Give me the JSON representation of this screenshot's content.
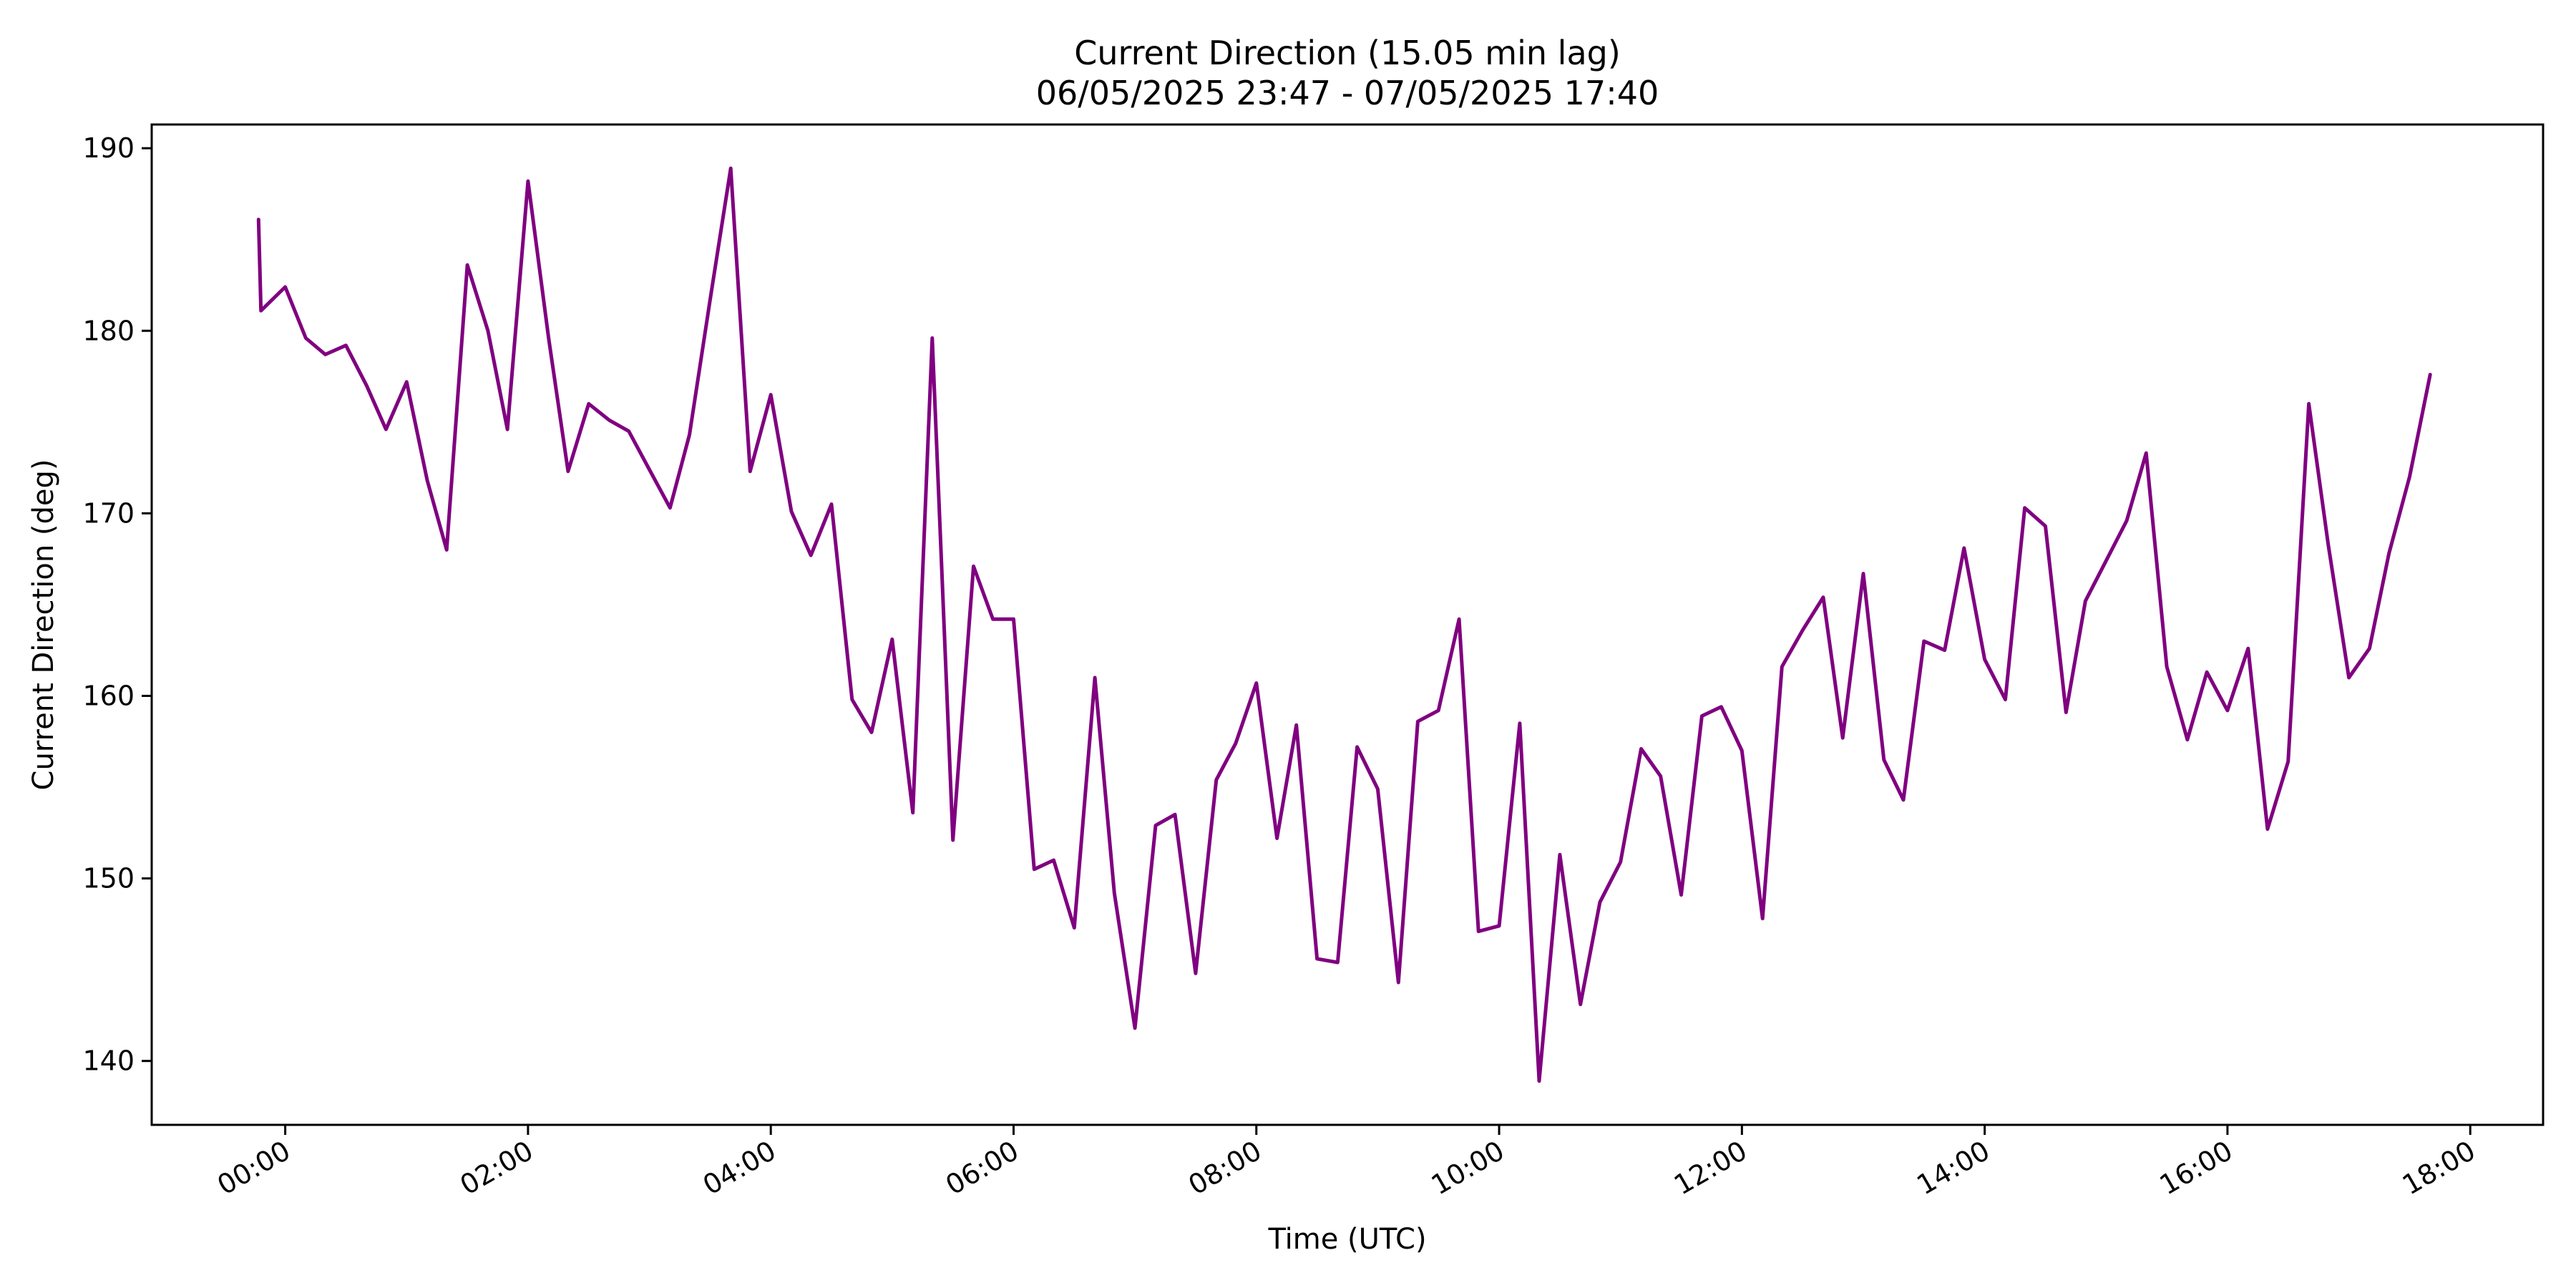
{
  "chart_data": {
    "type": "line",
    "title": "Current Direction (15.05 min lag)",
    "subtitle": "06/05/2025 23:47 - 07/05/2025 17:40",
    "xlabel": "Time (UTC)",
    "ylabel": "Current Direction (deg)",
    "x_tick_labels": [
      "00:00",
      "02:00",
      "04:00",
      "06:00",
      "08:00",
      "10:00",
      "12:00",
      "14:00",
      "16:00",
      "18:00"
    ],
    "x_tick_hours": [
      0,
      2,
      4,
      6,
      8,
      10,
      12,
      14,
      16,
      18
    ],
    "y_ticks": [
      140,
      150,
      160,
      170,
      180,
      190
    ],
    "xlim_hours": [
      -1.1,
      18.6
    ],
    "ylim": [
      136.5,
      191.3
    ],
    "grid": false,
    "legend": "none",
    "line_color": "#800080",
    "series": [
      {
        "x_hours": [
          -0.22,
          -0.2,
          0.0,
          0.17,
          0.33,
          0.5,
          0.67,
          0.83,
          1.0,
          1.17,
          1.33,
          1.5,
          1.67,
          1.83,
          2.0,
          2.17,
          2.33,
          2.5,
          2.67,
          2.83,
          3.0,
          3.17,
          3.33,
          3.5,
          3.67,
          3.83,
          4.0,
          4.17,
          4.33,
          4.5,
          4.67,
          4.83,
          5.0,
          5.17,
          5.33,
          5.5,
          5.67,
          5.83,
          6.0,
          6.17,
          6.33,
          6.5,
          6.67,
          6.83,
          7.0,
          7.17,
          7.33,
          7.5,
          7.67,
          7.83,
          8.0,
          8.17,
          8.33,
          8.5,
          8.67,
          8.83,
          9.0,
          9.17,
          9.33,
          9.5,
          9.67,
          9.83,
          10.0,
          10.17,
          10.33,
          10.5,
          10.67,
          10.83,
          11.0,
          11.17,
          11.33,
          11.5,
          11.67,
          11.83,
          12.0,
          12.17,
          12.33,
          12.5,
          12.67,
          12.83,
          13.0,
          13.17,
          13.33,
          13.5,
          13.67,
          13.83,
          14.0,
          14.17,
          14.33,
          14.5,
          14.67,
          14.83,
          15.0,
          15.17,
          15.33,
          15.5,
          15.67,
          15.83,
          16.0,
          16.17,
          16.33,
          16.5,
          16.67,
          16.83,
          17.0,
          17.17,
          17.33,
          17.5,
          17.67
        ],
        "values": [
          186.1,
          181.1,
          182.4,
          179.6,
          178.7,
          179.2,
          177.0,
          174.6,
          177.2,
          171.8,
          168.0,
          183.6,
          180.0,
          174.6,
          188.2,
          179.6,
          172.3,
          176.0,
          175.1,
          174.5,
          172.4,
          170.3,
          174.3,
          181.7,
          188.9,
          172.3,
          176.5,
          170.1,
          167.7,
          170.5,
          159.8,
          158.0,
          163.1,
          153.6,
          179.6,
          152.1,
          167.1,
          164.2,
          164.2,
          150.5,
          151.0,
          147.3,
          161.0,
          149.2,
          141.8,
          152.9,
          153.5,
          144.8,
          155.4,
          157.4,
          160.7,
          152.2,
          158.4,
          145.6,
          145.4,
          157.2,
          154.9,
          144.3,
          158.6,
          159.2,
          164.2,
          147.1,
          147.4,
          158.5,
          138.9,
          151.3,
          143.1,
          148.7,
          150.9,
          157.1,
          155.6,
          149.1,
          158.9,
          159.4,
          157.0,
          147.8,
          161.6,
          163.6,
          165.4,
          157.7,
          166.7,
          156.5,
          154.3,
          163.0,
          162.5,
          168.1,
          162.0,
          159.8,
          170.3,
          169.3,
          159.1,
          165.2,
          167.4,
          169.6,
          173.3,
          161.6,
          157.6,
          161.3,
          159.2,
          162.6,
          152.7,
          156.4,
          176.0,
          168.3,
          161.0,
          162.6,
          167.8,
          172.0,
          177.6
        ]
      }
    ]
  }
}
